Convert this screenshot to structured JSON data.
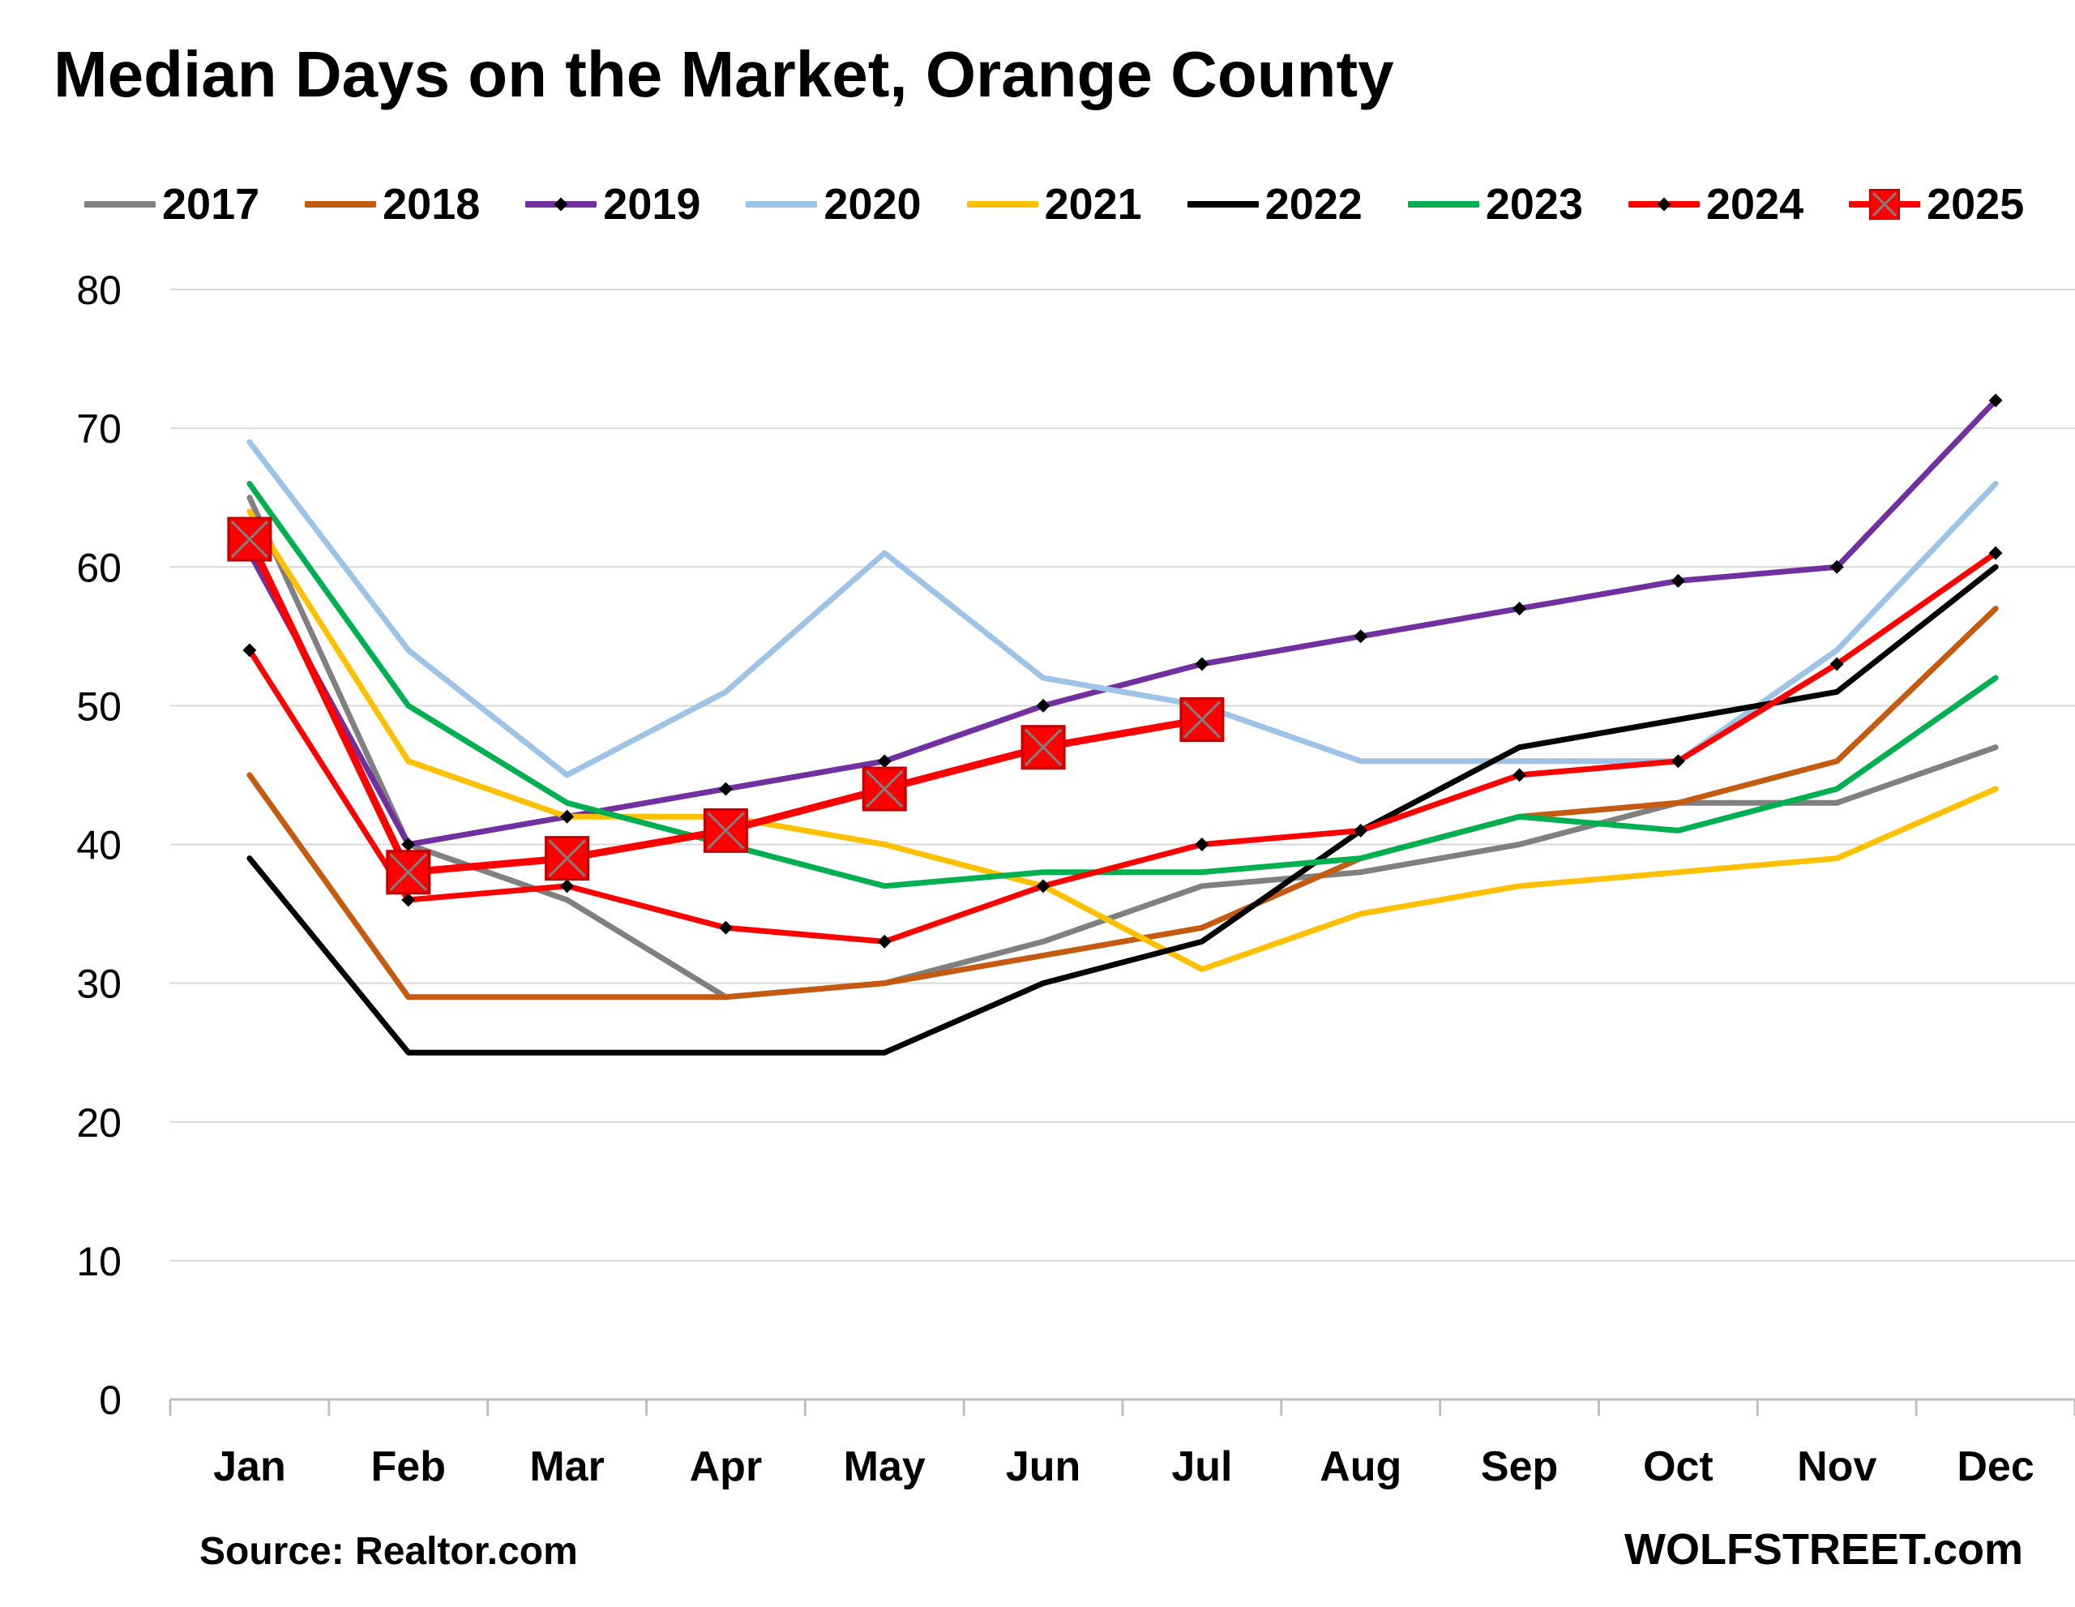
{
  "title": "Median Days on the Market, Orange County",
  "source": "Source: Realtor.com",
  "brand": "WOLFSTREET.com",
  "chart_data": {
    "type": "line",
    "title": "Median Days on the Market, Orange County",
    "xlabel": "",
    "ylabel": "",
    "categories": [
      "Jan",
      "Feb",
      "Mar",
      "Apr",
      "May",
      "Jun",
      "Jul",
      "Aug",
      "Sep",
      "Oct",
      "Nov",
      "Dec"
    ],
    "ylim": [
      0,
      80
    ],
    "yticks": [
      "0",
      "10",
      "20",
      "30",
      "40",
      "50",
      "60",
      "70",
      "80"
    ],
    "grid": true,
    "legend": "top",
    "series": [
      {
        "name": "2017",
        "color": "#808080",
        "marker": "none",
        "values": [
          65,
          40,
          36,
          29,
          30,
          33,
          37,
          38,
          40,
          43,
          43,
          47
        ]
      },
      {
        "name": "2018",
        "color": "#C55A11",
        "marker": "none",
        "values": [
          45,
          29,
          29,
          29,
          30,
          32,
          34,
          39,
          42,
          43,
          46,
          57
        ]
      },
      {
        "name": "2019",
        "color": "#7030A0",
        "marker": "dot",
        "values": [
          61,
          40,
          42,
          44,
          46,
          50,
          53,
          55,
          57,
          59,
          60,
          72
        ]
      },
      {
        "name": "2020",
        "color": "#9DC3E6",
        "marker": "none",
        "values": [
          69,
          54,
          45,
          51,
          61,
          52,
          50,
          46,
          46,
          46,
          54,
          66
        ]
      },
      {
        "name": "2021",
        "color": "#FFC000",
        "marker": "none",
        "values": [
          64,
          46,
          42,
          42,
          40,
          37,
          31,
          35,
          37,
          38,
          39,
          44
        ]
      },
      {
        "name": "2022",
        "color": "#000000",
        "marker": "none",
        "values": [
          39,
          25,
          25,
          25,
          25,
          30,
          33,
          41,
          47,
          49,
          51,
          60
        ]
      },
      {
        "name": "2023",
        "color": "#00B050",
        "marker": "none",
        "values": [
          66,
          50,
          43,
          40,
          37,
          38,
          38,
          39,
          42,
          41,
          44,
          52
        ]
      },
      {
        "name": "2024",
        "color": "#FF0000",
        "marker": "dot",
        "values": [
          54,
          36,
          37,
          34,
          33,
          37,
          40,
          41,
          45,
          46,
          53,
          61
        ]
      },
      {
        "name": "2025",
        "color": "#FF0000",
        "marker": "square",
        "values": [
          62,
          38,
          39,
          41,
          44,
          47,
          49,
          null,
          null,
          null,
          null,
          null
        ]
      }
    ]
  }
}
